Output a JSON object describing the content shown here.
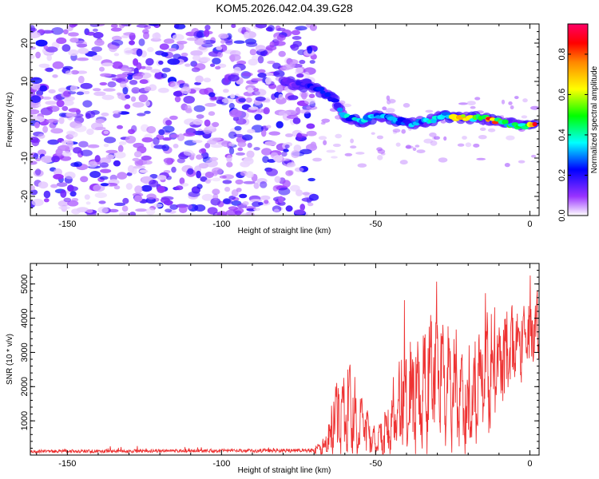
{
  "title": "KOM5.2026.042.04.39.G28",
  "chart_data": [
    {
      "type": "heatmap",
      "name": "spectrogram",
      "xlabel": "Height of straight line (km)",
      "ylabel": "Frequency (Hz)",
      "xlim": [
        -162,
        3
      ],
      "ylim": [
        -25,
        25
      ],
      "xticks": [
        -150,
        -100,
        -50,
        0
      ],
      "yticks": [
        -20,
        -10,
        0,
        10,
        20
      ],
      "colorbar": {
        "label": "Normalized spectral amplitude",
        "range": [
          0,
          0.95
        ],
        "ticks": [
          "0.0",
          "0.2",
          "0.4",
          "0.6",
          "0.8"
        ],
        "tick_values": [
          0.0,
          0.2,
          0.4,
          0.6,
          0.8
        ],
        "colors": [
          "#ffffff",
          "#9933ff",
          "#0000ff",
          "#00ffff",
          "#00ff00",
          "#ffff00",
          "#ff8800",
          "#ff0000",
          "#ff0066"
        ]
      },
      "noise_region_km": [
        -162,
        -70
      ],
      "signal_track": [
        {
          "x": -80,
          "f": 10,
          "a": 0.15
        },
        {
          "x": -74,
          "f": 9,
          "a": 0.2
        },
        {
          "x": -69,
          "f": 8,
          "a": 0.25
        },
        {
          "x": -63,
          "f": 5,
          "a": 0.3
        },
        {
          "x": -60,
          "f": 1,
          "a": 0.45
        },
        {
          "x": -55,
          "f": -0.5,
          "a": 0.4
        },
        {
          "x": -49,
          "f": 1,
          "a": 0.35
        },
        {
          "x": -44,
          "f": 0,
          "a": 0.4
        },
        {
          "x": -38,
          "f": -1,
          "a": 0.35
        },
        {
          "x": -33,
          "f": -0.5,
          "a": 0.4
        },
        {
          "x": -28,
          "f": 1,
          "a": 0.5
        },
        {
          "x": -23,
          "f": 0.5,
          "a": 0.75
        },
        {
          "x": -18,
          "f": 0.5,
          "a": 0.65
        },
        {
          "x": -12,
          "f": 0,
          "a": 0.9
        },
        {
          "x": -7,
          "f": -1,
          "a": 0.55
        },
        {
          "x": -2,
          "f": -1.5,
          "a": 0.6
        },
        {
          "x": 2,
          "f": -1.5,
          "a": 0.95
        }
      ]
    },
    {
      "type": "line",
      "name": "snr",
      "xlabel": "Height of straight line (km)",
      "ylabel": "SNR (10 * v/v)",
      "xlim": [
        -162,
        3
      ],
      "ylim": [
        0,
        5600
      ],
      "xticks": [
        -150,
        -100,
        -50,
        0
      ],
      "yticks": [
        1000,
        2000,
        3000,
        4000,
        5000
      ],
      "color": "#ee3333",
      "envelope": [
        {
          "x": -162,
          "base": 100,
          "amp": 150
        },
        {
          "x": -70,
          "base": 120,
          "amp": 180
        },
        {
          "x": -66,
          "base": 300,
          "amp": 500
        },
        {
          "x": -63,
          "base": 1000,
          "amp": 1800
        },
        {
          "x": -60,
          "base": 1500,
          "amp": 2700
        },
        {
          "x": -55,
          "base": 900,
          "amp": 1300
        },
        {
          "x": -50,
          "base": 400,
          "amp": 700
        },
        {
          "x": -45,
          "base": 800,
          "amp": 1400
        },
        {
          "x": -40,
          "base": 1500,
          "amp": 2800
        },
        {
          "x": -35,
          "base": 1600,
          "amp": 2500
        },
        {
          "x": -31,
          "base": 2300,
          "amp": 3200
        },
        {
          "x": -25,
          "base": 1900,
          "amp": 2600
        },
        {
          "x": -20,
          "base": 1300,
          "amp": 2300
        },
        {
          "x": -15,
          "base": 2300,
          "amp": 2600
        },
        {
          "x": -10,
          "base": 2700,
          "amp": 2300
        },
        {
          "x": -5,
          "base": 3200,
          "amp": 1800
        },
        {
          "x": 0,
          "base": 3500,
          "amp": 1700
        },
        {
          "x": 3,
          "base": 3700,
          "amp": 1300
        }
      ]
    }
  ]
}
